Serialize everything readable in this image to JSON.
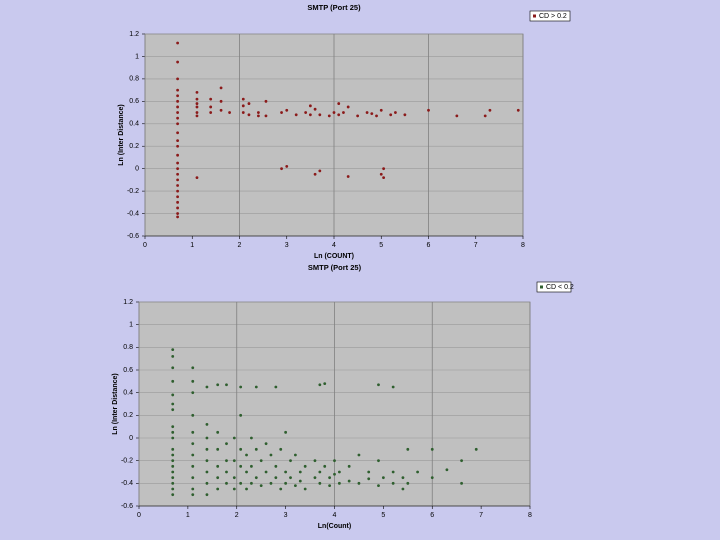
{
  "chart_data": [
    {
      "type": "scatter",
      "title": "SMTP (Port 25)",
      "xlabel": "Ln (COUNT)",
      "ylabel": "Ln (Inter Distance)",
      "xlim": [
        0,
        8
      ],
      "xticks": [
        0,
        1,
        2,
        3,
        4,
        5,
        6,
        7,
        8
      ],
      "ylim": [
        -0.6,
        1.2
      ],
      "yticks": [
        -0.6,
        -0.4,
        -0.2,
        0,
        0.2,
        0.4,
        0.6,
        0.8,
        1,
        1.2
      ],
      "grid": true,
      "legend": "upper right",
      "x": [
        0.69,
        0.69,
        0.69,
        0.69,
        0.69,
        0.69,
        0.69,
        0.69,
        0.69,
        0.69,
        0.69,
        0.69,
        0.69,
        0.69,
        0.69,
        0.69,
        0.69,
        0.69,
        0.69,
        0.69,
        0.69,
        0.69,
        0.69,
        0.69,
        0.69,
        1.1,
        1.1,
        1.1,
        1.1,
        1.1,
        1.1,
        1.1,
        1.39,
        1.39,
        1.39,
        1.61,
        1.61,
        1.61,
        1.79,
        2.08,
        2.08,
        2.08,
        2.2,
        2.2,
        2.4,
        2.4,
        2.56,
        2.56,
        2.89,
        2.89,
        3.0,
        3.0,
        3.2,
        3.4,
        3.5,
        3.5,
        3.6,
        3.6,
        3.7,
        3.7,
        3.9,
        4.0,
        4.1,
        4.1,
        4.2,
        4.3,
        4.3,
        4.5,
        4.7,
        4.8,
        4.9,
        5.0,
        5.0,
        5.05,
        5.05,
        5.2,
        5.3,
        5.5,
        6.0,
        6.6,
        7.2,
        7.3,
        7.9
      ],
      "series": [
        {
          "name": "CD > 0.2",
          "color": "#8b1a1a",
          "values": [
            1.12,
            0.95,
            0.8,
            0.7,
            0.65,
            0.6,
            0.55,
            0.5,
            0.45,
            0.4,
            0.32,
            0.25,
            0.2,
            0.12,
            0.05,
            0.0,
            -0.05,
            -0.1,
            -0.15,
            -0.2,
            -0.25,
            -0.3,
            -0.35,
            -0.4,
            -0.43,
            0.68,
            0.62,
            0.58,
            0.55,
            0.5,
            0.47,
            -0.08,
            0.62,
            0.55,
            0.5,
            0.72,
            0.6,
            0.52,
            0.5,
            0.62,
            0.56,
            0.5,
            0.58,
            0.48,
            0.5,
            0.47,
            0.6,
            0.47,
            0.5,
            0.0,
            0.52,
            0.02,
            0.48,
            0.5,
            0.56,
            0.48,
            0.53,
            -0.05,
            0.48,
            -0.02,
            0.47,
            0.5,
            0.58,
            0.48,
            0.5,
            0.55,
            -0.07,
            0.47,
            0.5,
            0.49,
            0.47,
            0.52,
            -0.05,
            0.0,
            -0.08,
            0.48,
            0.5,
            0.48,
            0.52,
            0.47,
            0.47,
            0.52,
            0.52
          ]
        }
      ]
    },
    {
      "type": "scatter",
      "title": "SMTP (Port 25)",
      "xlabel": "Ln(Count)",
      "ylabel": "Ln (Inter Distance)",
      "xlim": [
        0,
        8
      ],
      "xticks": [
        0,
        1,
        2,
        3,
        4,
        5,
        6,
        7,
        8
      ],
      "ylim": [
        -0.6,
        1.2
      ],
      "yticks": [
        -0.6,
        -0.4,
        -0.2,
        0,
        0.2,
        0.4,
        0.6,
        0.8,
        1,
        1.2
      ],
      "grid": true,
      "legend": "upper right",
      "x": [
        0.69,
        0.69,
        0.69,
        0.69,
        0.69,
        0.69,
        0.69,
        0.69,
        0.69,
        0.69,
        0.69,
        0.69,
        0.69,
        0.69,
        0.69,
        0.69,
        0.69,
        0.69,
        0.69,
        1.1,
        1.1,
        1.1,
        1.1,
        1.1,
        1.1,
        1.1,
        1.1,
        1.1,
        1.1,
        1.1,
        1.39,
        1.39,
        1.39,
        1.39,
        1.39,
        1.39,
        1.39,
        1.39,
        1.61,
        1.61,
        1.61,
        1.61,
        1.61,
        1.61,
        1.79,
        1.79,
        1.79,
        1.79,
        1.79,
        1.95,
        1.95,
        1.95,
        1.95,
        2.08,
        2.08,
        2.08,
        2.08,
        2.08,
        2.2,
        2.2,
        2.2,
        2.3,
        2.3,
        2.3,
        2.4,
        2.4,
        2.4,
        2.5,
        2.5,
        2.6,
        2.6,
        2.7,
        2.7,
        2.8,
        2.8,
        2.8,
        2.9,
        2.9,
        3.0,
        3.0,
        3.0,
        3.1,
        3.1,
        3.2,
        3.2,
        3.3,
        3.3,
        3.4,
        3.4,
        3.6,
        3.6,
        3.7,
        3.7,
        3.7,
        3.8,
        3.8,
        3.9,
        3.9,
        4.0,
        4.0,
        4.1,
        4.1,
        4.3,
        4.3,
        4.5,
        4.5,
        4.7,
        4.7,
        4.9,
        4.9,
        4.9,
        5.0,
        5.2,
        5.2,
        5.2,
        5.4,
        5.4,
        5.5,
        5.5,
        5.7,
        6.0,
        6.0,
        6.3,
        6.6,
        6.6,
        6.9
      ],
      "series": [
        {
          "name": "CD < 0.2",
          "color": "#2f5f2f",
          "values": [
            0.78,
            0.72,
            0.62,
            0.5,
            0.38,
            0.25,
            0.1,
            0.0,
            -0.1,
            -0.2,
            -0.3,
            -0.4,
            -0.5,
            -0.45,
            -0.35,
            -0.25,
            -0.15,
            0.05,
            0.3,
            0.62,
            0.5,
            0.4,
            0.2,
            0.05,
            -0.05,
            -0.15,
            -0.25,
            -0.35,
            -0.45,
            -0.5,
            0.45,
            0.12,
            0.0,
            -0.1,
            -0.2,
            -0.3,
            -0.4,
            -0.5,
            0.47,
            0.05,
            -0.1,
            -0.25,
            -0.35,
            -0.45,
            0.47,
            -0.05,
            -0.2,
            -0.3,
            -0.4,
            0.0,
            -0.2,
            -0.35,
            -0.45,
            0.45,
            0.2,
            -0.1,
            -0.25,
            -0.4,
            -0.15,
            -0.3,
            -0.45,
            0.0,
            -0.25,
            -0.4,
            0.45,
            -0.1,
            -0.35,
            -0.2,
            -0.42,
            -0.05,
            -0.3,
            -0.15,
            -0.4,
            0.45,
            -0.25,
            -0.35,
            -0.1,
            -0.45,
            0.05,
            -0.3,
            -0.4,
            -0.2,
            -0.35,
            -0.15,
            -0.42,
            -0.3,
            -0.38,
            -0.25,
            -0.45,
            -0.2,
            -0.35,
            0.47,
            -0.3,
            -0.4,
            0.48,
            -0.25,
            -0.35,
            -0.42,
            -0.2,
            -0.32,
            -0.4,
            -0.3,
            -0.25,
            -0.38,
            -0.15,
            -0.4,
            -0.3,
            -0.36,
            0.47,
            -0.2,
            -0.42,
            -0.35,
            0.45,
            -0.3,
            -0.4,
            -0.35,
            -0.45,
            -0.1,
            -0.4,
            -0.3,
            -0.1,
            -0.35,
            -0.28,
            -0.2,
            -0.4,
            -0.1
          ]
        }
      ]
    }
  ]
}
